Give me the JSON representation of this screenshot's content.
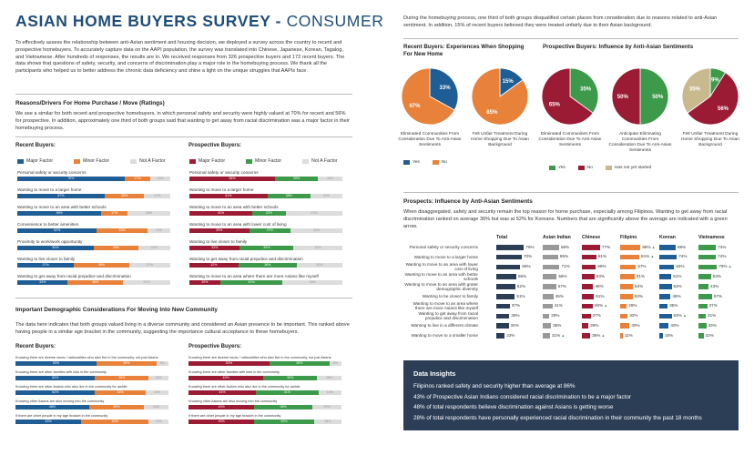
{
  "title": {
    "bold": "ASIAN HOME BUYERS SURVEY - ",
    "thin": "CONSUMER"
  },
  "intro": "To effectively assess the relationship between anti-Asian sentiment and housing decision, we deployed a survey across the country to recent and prospective homebuyers. To accurately capture data on the AAPI population, the survey was translated into Chinese, Japanese, Korean, Tagalog, and Vietnamese. After hundreds of responses, the results are in. We received responses from 326 prospective buyers and 172 recent buyers. The data shows that questions of safety, security, and concerns of discrimination play a major role in the homebuying process. We thank all the participants who helped us to better address the chronic data deficiency and shine a light on the unique struggles that AAPIs face.",
  "reasons": {
    "heading": "Reasons/Drivers For Home Purchase / Move (Ratings)",
    "para": "We see a similar for both recent and prospective homebuyers, in which personal safety and security were highly valued at 70% for recent and 56% for prospective. In addition, approximately one third of both groups said that wanting to get away from racial discrimination was a major factor in their homebuying process.",
    "recent_label": "Recent Buyers:",
    "prospective_label": "Prospective Buyers:",
    "legend": [
      "Major Factor",
      "Minor Factor",
      "Not A Factor"
    ],
    "recent_colors": [
      "#1f5d95",
      "#e8823a",
      "#dcdcdc"
    ],
    "prospective_colors": [
      "#9c1b34",
      "#3d9a4a",
      "#dcdcdc"
    ],
    "recent_bars": [
      {
        "label": "Personal safety or security concerns",
        "v": [
          70,
          17,
          13
        ]
      },
      {
        "label": "Wanting to move to a larger home",
        "v": [
          57,
          26,
          17
        ]
      },
      {
        "label": "Wanting to move to an area with better schools",
        "v": [
          55,
          17,
          28
        ]
      },
      {
        "label": "Convenience to better amenities",
        "v": [
          52,
          33,
          15
        ]
      },
      {
        "label": "Proximity to work/work opportunity",
        "v": [
          50,
          29,
          21
        ]
      },
      {
        "label": "Wanting to live closer to family",
        "v": [
          37,
          36,
          27
        ]
      },
      {
        "label": "Wanting to get away from racial prejudice and discrimination",
        "v": [
          33,
          36,
          31
        ]
      }
    ],
    "prospective_bars": [
      {
        "label": "Personal safety or security concerns",
        "v": [
          56,
          28,
          16
        ]
      },
      {
        "label": "Wanting to move to a larger home",
        "v": [
          51,
          28,
          21
        ]
      },
      {
        "label": "Wanting to move to an area with better schools",
        "v": [
          41,
          22,
          37
        ]
      },
      {
        "label": "Wanting to move to an area with lower cost of living",
        "v": [
          39,
          27,
          34
        ]
      },
      {
        "label": "Wanting to live closer to family",
        "v": [
          33,
          35,
          32
        ]
      },
      {
        "label": "Wanting to get away from racial prejudice and discrimination",
        "v": [
          32,
          38,
          30
        ]
      },
      {
        "label": "Wanting to move to an area where there are more Asians like myself",
        "v": [
          20,
          41,
          39
        ]
      }
    ]
  },
  "community": {
    "heading": "Important Demographic Considerations For Moving Into New Community",
    "para": "The data here indicates that both groups valued living in a diverse community and considered an Asian presence to be important. This ranked above having people in a similar age bracket in the community, suggesting the importance cultural acceptance to these homebuyers.",
    "recent_label": "Recent Buyers:",
    "prospective_label": "Prospective Buyers:",
    "recent_bars": [
      {
        "label": "Knowing there are diverse races / nationalities who also live in the community, not just Asians",
        "v": [
          53,
          39,
          8
        ]
      },
      {
        "label": "Knowing there are other families with kids in the community",
        "v": [
          52,
          35,
          13
        ]
      },
      {
        "label": "Knowing there are other Asians who also live in the community for awhile",
        "v": [
          52,
          33,
          15
        ]
      },
      {
        "label": "Knowing other Asians are also moving into the community",
        "v": [
          48,
          36,
          16
        ]
      },
      {
        "label": "If there are other people in my age bracket in the community",
        "v": [
          43,
          44,
          13
        ]
      }
    ],
    "prospective_bars": [
      {
        "label": "Knowing there are diverse races / nationalities who also live in the community, not just Asians",
        "v": [
          53,
          39,
          8
        ]
      },
      {
        "label": "Knowing there are other families with kids in the community",
        "v": [
          49,
          35,
          16
        ]
      },
      {
        "label": "Knowing there are other Asians who also live in the community for awhile",
        "v": [
          44,
          41,
          15
        ]
      },
      {
        "label": "Knowing other Asians are also moving into the community",
        "v": [
          43,
          38,
          19
        ]
      },
      {
        "label": "If there are other people in my age bracket in the community",
        "v": [
          43,
          39,
          18
        ]
      }
    ]
  },
  "right_intro": "During the homebuying process, one third of both groups disqualified certain places from consideration due to reasons related to anti-Asian sentiment. In addition, 15% of recent buyers believed they were treated unfairly due to their Asian background.",
  "pies_recent": {
    "title": "Recent Buyers: Experiences When Shopping For New Home",
    "colors": [
      "#1f5d95",
      "#e8823a"
    ],
    "pies": [
      {
        "caption": "Eliminated Communities From Consideration Due To Anti-Asian Sentiments",
        "v": [
          33,
          67
        ]
      },
      {
        "caption": "Felt Unfair Treatment During Home Shopping Due To Asian Background",
        "v": [
          15,
          85
        ]
      }
    ],
    "legend": [
      "Yes",
      "No"
    ]
  },
  "pies_prospective": {
    "title": "Prospective Buyers: Influence by Anti-Asian Sentiments",
    "colors": [
      "#3d9a4a",
      "#9c1b34",
      "#c9b98f"
    ],
    "pies": [
      {
        "caption": "Eliminated Communities From Consideration Due To Anti-Asian Sentiments",
        "v": [
          35,
          65,
          0
        ]
      },
      {
        "caption": "Anticipate Eliminating Communities From Consideration Due To Anti-Asian Sentiments",
        "v": [
          50,
          50,
          0
        ]
      },
      {
        "caption": "Felt Unfair Treatment During Home Shopping Due To Asian Background",
        "v": [
          9,
          56,
          35
        ]
      }
    ],
    "legend": [
      "Yes",
      "No",
      "Has not yet started"
    ]
  },
  "prospects": {
    "heading": "Prospects: Influence by Anti-Asian Sentiments",
    "para": "When disaggregated, safety and security remain the top reason for home purchase, especially among Filipinos. Wanting to get away from racial discrimination ranked on average 36% but was at 52% for Koreans. Numbers that are significantly above the average are indicated with a green arrow.",
    "columns": [
      {
        "name": "Total",
        "color": "#2c3e56"
      },
      {
        "name": "Asian Indian",
        "color": "#999999"
      },
      {
        "name": "Chinese",
        "color": "#9c1b34"
      },
      {
        "name": "Filipino",
        "color": "#e8823a"
      },
      {
        "name": "Korean",
        "color": "#1f5d95"
      },
      {
        "name": "Vietnamese",
        "color": "#3d9a4a"
      }
    ],
    "rows": [
      {
        "label": "Personal safety or security concerns",
        "v": [
          76,
          69,
          77,
          86,
          69,
          74
        ],
        "up": [
          false,
          false,
          false,
          true,
          false,
          false
        ]
      },
      {
        "label": "Wanting to move to a larger home",
        "v": [
          70,
          65,
          61,
          81,
          74,
          74
        ],
        "up": [
          false,
          false,
          false,
          true,
          false,
          false
        ]
      },
      {
        "label": "Wanting to move to an area with lower cost of living",
        "v": [
          66,
          71,
          59,
          67,
          63,
          78
        ],
        "up": [
          false,
          false,
          false,
          false,
          false,
          true
        ]
      },
      {
        "label": "Wanting to move to an area with better schools",
        "v": [
          55,
          59,
          53,
          61,
          51,
          53
        ],
        "up": [
          false,
          false,
          false,
          false,
          false,
          false
        ]
      },
      {
        "label": "Wanting to move to an area with grater demographic diversity",
        "v": [
          52,
          57,
          48,
          54,
          52,
          43
        ],
        "up": [
          false,
          false,
          false,
          false,
          false,
          false
        ]
      },
      {
        "label": "Wanting to be closer to family",
        "v": [
          51,
          45,
          51,
          53,
          48,
          57
        ],
        "up": [
          false,
          false,
          false,
          false,
          false,
          false
        ]
      },
      {
        "label": "Wanting to move to an area where there are more Asians like myself",
        "v": [
          37,
          41,
          46,
          28,
          35,
          37
        ],
        "up": [
          false,
          false,
          true,
          false,
          false,
          false
        ]
      },
      {
        "label": "Wanting to get away from racial prejudice and discrimination",
        "v": [
          36,
          28,
          37,
          32,
          52,
          31
        ],
        "up": [
          false,
          false,
          false,
          false,
          true,
          false
        ]
      },
      {
        "label": "Wanting to live in a different climate",
        "v": [
          34,
          35,
          28,
          40,
          40,
          33
        ],
        "up": [
          false,
          false,
          false,
          false,
          false,
          false
        ]
      },
      {
        "label": "Wanting to move to a smaller home",
        "v": [
          23,
          31,
          35,
          11,
          15,
          22
        ],
        "up": [
          false,
          true,
          true,
          false,
          false,
          false
        ]
      }
    ]
  },
  "insights": {
    "heading": "Data Insights",
    "lines": [
      "Filipinos ranked safety and security higher than average at 86%",
      "43% of Prospective Asian Indians considered racial discrimination to be a major factor",
      "48% of total respondents believe discrimination against Asians is getting worse",
      "28% of total respondents have personally experienced racial discrimination in their community the past 18 months"
    ]
  }
}
